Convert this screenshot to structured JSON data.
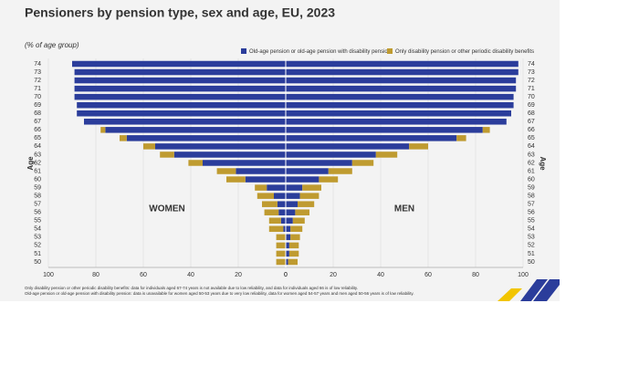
{
  "chart_data": {
    "type": "pyramid",
    "title": "Pensioners by pension type, sex and age, EU, 2023",
    "subtitle": "(% of age group)",
    "y_label": "Age",
    "left_label": "WOMEN",
    "right_label": "MEN",
    "categories": [
      "74",
      "73",
      "72",
      "71",
      "70",
      "69",
      "68",
      "67",
      "66",
      "65",
      "64",
      "63",
      "62",
      "61",
      "60",
      "59",
      "58",
      "57",
      "56",
      "55",
      "54",
      "53",
      "52",
      "51",
      "50"
    ],
    "series": [
      {
        "name": "Old-age pension or old-age pension with disability pension",
        "color": "#2b3d9b",
        "women": [
          90,
          89,
          89,
          89,
          89,
          88,
          88,
          85,
          76,
          67,
          55,
          47,
          35,
          21,
          17,
          8,
          5,
          3.5,
          3,
          2,
          1,
          null,
          null,
          null,
          null
        ],
        "men": [
          98,
          98,
          97,
          97,
          96,
          96,
          95,
          93,
          83,
          72,
          52,
          38,
          28,
          18,
          14,
          7,
          6,
          5,
          4,
          3,
          2,
          2,
          1.5,
          1.5,
          1
        ]
      },
      {
        "name": "Only disability pension or other periodic disability benefits",
        "color": "#bf9b30",
        "women": [
          null,
          null,
          null,
          null,
          null,
          null,
          null,
          null,
          2,
          3,
          5,
          6,
          6,
          8,
          8,
          5,
          7,
          6.5,
          6,
          5,
          6,
          4,
          4,
          4,
          4
        ],
        "men": [
          null,
          null,
          null,
          null,
          null,
          null,
          null,
          null,
          3,
          4,
          8,
          9,
          9,
          10,
          8,
          8,
          8,
          7,
          6,
          5,
          5,
          4,
          4,
          4,
          4
        ]
      }
    ],
    "xlim": [
      0,
      100
    ],
    "xticks": [
      0,
      20,
      40,
      60,
      80,
      100
    ],
    "grid": true,
    "notes": [
      "Only disability pension or other periodic disability benefits: data for individuals aged 67-74 years is not available due to low reliability, and data for individuals aged 66 is of low reliability.",
      "Old-age pension or old-age pension with disability pension: data is unavailable for women aged 50-53 years due to very low reliability, data for women aged 54-57 years and men aged 50-56 years is of low reliability."
    ]
  }
}
